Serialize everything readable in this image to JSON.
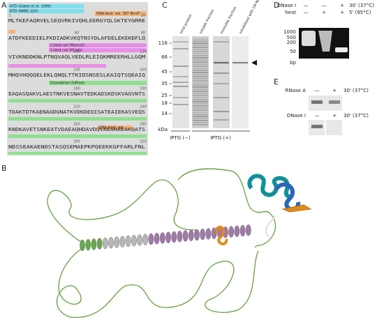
{
  "panel_labels": [
    "A",
    "B",
    "C",
    "D",
    "E"
  ],
  "panel_a": {
    "rulers": [
      [
        "1",
        "20"
      ],
      [
        "60",
        "80"
      ],
      [
        "100",
        "120"
      ],
      [
        "140",
        "160"
      ],
      [
        "180",
        "200"
      ],
      [
        "220",
        "240"
      ],
      [
        "260",
        "280"
      ],
      [
        "300",
        "320"
      ]
    ],
    "sequence": [
      "MLTKEFAQRVELSEQVRKIVQHLEERGYQLSKTEYGRRE",
      "ATDFKEEDIELFKDIADKVKQTNSYDLAFDELEKEKDFLQ",
      "VIVKNDDKNLPTNQVAQLVEDLRLEIQKMREERHLLGQM",
      "MHQVHQQQELEKLQNQLTTKIDSNSESLKAIQTSQEAIQ",
      "EAQASQAKVLAESTNKVESNAVTEDKADSKDSKVAGVNTS",
      "TDAKTDTKAENAGDGNATKVDKDEQISATEAIEKASVEQS",
      "KNDKAVETSNKEATVDAEAQHDAVDQVAEAHAEAKQATS",
      "NDSSEAKAENDSTASQSEMAEPKPQEEKKGFFARLFNL"
    ],
    "features": [
      "NTD (Gabel et al. 1999)",
      "NTD (NMR) 2JVX",
      "DNA-bind. res. 3D* Bind*",
      "Coiled coil (Marcoil)",
      "Coiled coil (PCoils)",
      "Disordered (IUPred)",
      "DNA-bind. res."
    ]
  },
  "panel_c": {
    "lanes": [
      "total protein",
      "soluble fraction",
      "insoluble fraction",
      "solubilised with 1M NaCl"
    ],
    "markers": [
      "116",
      "66",
      "45",
      "35",
      "25",
      "18",
      "14"
    ],
    "unit": "kDa",
    "groups": [
      "IPTG (−)",
      "IPTG (+)"
    ]
  },
  "panel_d": {
    "rows": [
      "DNase I",
      "heat"
    ],
    "signs": [
      [
        "—",
        "—",
        "+"
      ],
      [
        "—",
        "+",
        "+"
      ]
    ],
    "conditions": [
      "30' (37°C)",
      "5' (95°C)"
    ],
    "ladder": [
      "1000",
      "500",
      "200",
      "50"
    ],
    "unit": "bp"
  },
  "panel_e": {
    "blots": [
      {
        "label": "RNase A",
        "signs": [
          "—",
          "+"
        ],
        "condition": "30' (37°C)"
      },
      {
        "label": "DNase I",
        "signs": [
          "—",
          "+"
        ],
        "condition": "30' (37°C)"
      }
    ]
  }
}
